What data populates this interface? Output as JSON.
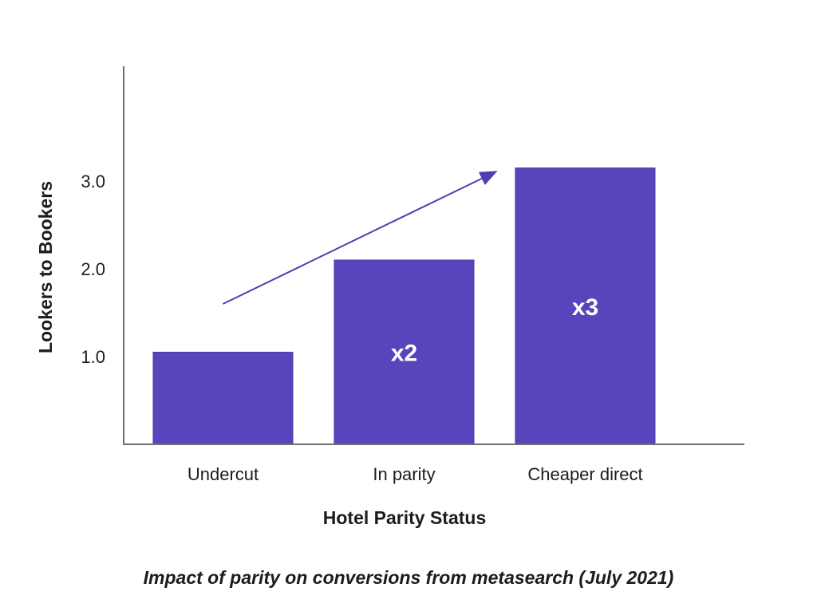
{
  "chart_data": {
    "type": "bar",
    "caption": "Impact of parity on conversions from metasearch (July 2021)",
    "xlabel": "Hotel Parity Status",
    "ylabel": "Lookers to Bookers",
    "categories": [
      "Undercut",
      "In parity",
      "Cheaper direct"
    ],
    "values": [
      1.05,
      2.1,
      3.15
    ],
    "bar_labels": [
      "",
      "x2",
      "x3"
    ],
    "ytick_values": [
      1.0,
      2.0,
      3.0
    ],
    "ytick_labels": [
      "1.0",
      "2.0",
      "3.0"
    ],
    "ylim": [
      0,
      4.3
    ],
    "grid": false,
    "legend": "none",
    "colors": {
      "bar": "#5844BB",
      "bar_stroke": "#4A3AA6",
      "arrow": "#4C3FB0",
      "axis": "#6F6F6F",
      "text": "#1C1C1C",
      "bar_label": "#FFFFFF",
      "background": "#FFFFFF"
    },
    "annotations": [
      {
        "type": "arrow",
        "from": {
          "category": 0,
          "value": 1.6
        },
        "to": {
          "category": 1.5,
          "value": 3.1
        }
      }
    ]
  }
}
